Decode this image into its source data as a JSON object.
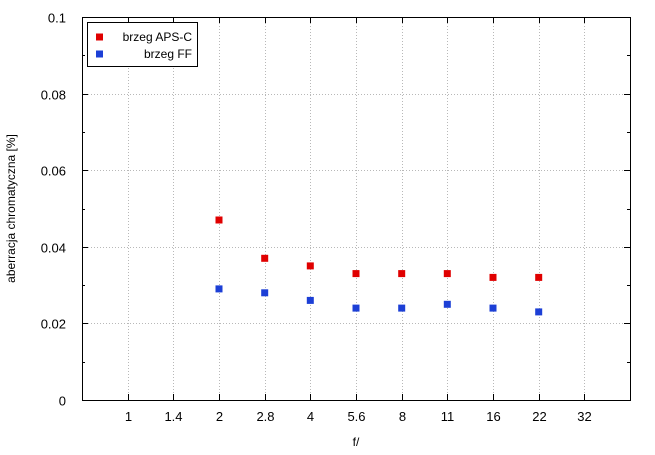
{
  "chart_data": {
    "type": "scatter",
    "xlabel": "f/",
    "ylabel": "aberracja chromatyczna [%]",
    "categories": [
      "1",
      "1.4",
      "2",
      "2.8",
      "4",
      "5.6",
      "8",
      "11",
      "16",
      "22",
      "32"
    ],
    "ylim": [
      0,
      0.1
    ],
    "yticks": [
      "0",
      "0.02",
      "0.04",
      "0.06",
      "0.08",
      "0.1"
    ],
    "ytick_values": [
      0,
      0.02,
      0.04,
      0.06,
      0.08,
      0.1
    ],
    "grid": true,
    "legend_position": "top-left",
    "series": [
      {
        "name": "brzeg APS-C",
        "color": "#e00000",
        "x": [
          "2",
          "2.8",
          "4",
          "5.6",
          "8",
          "11",
          "16",
          "22"
        ],
        "values": [
          0.047,
          0.037,
          0.035,
          0.033,
          0.033,
          0.033,
          0.032,
          0.032
        ]
      },
      {
        "name": "brzeg FF",
        "color": "#1c3fd6",
        "x": [
          "2",
          "2.8",
          "4",
          "5.6",
          "8",
          "11",
          "16",
          "22"
        ],
        "values": [
          0.029,
          0.028,
          0.026,
          0.024,
          0.024,
          0.025,
          0.024,
          0.023
        ]
      }
    ]
  }
}
